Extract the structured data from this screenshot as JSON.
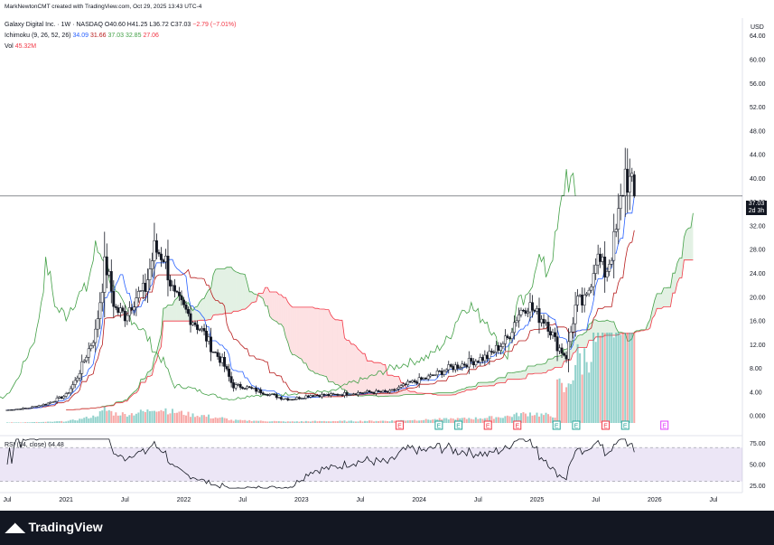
{
  "header": {
    "attribution": "MarkNewtonCMT created with TradingView.com, Oct 29, 2025 13:43 UTC-4",
    "symbol_line": "Galaxy Digital Inc. · 1W · NASDAQ",
    "ohlc": {
      "o": "O40.60",
      "h": "H41.25",
      "l": "L36.72",
      "c": "C37.03",
      "chg": "−2.79 (−7.01%)"
    },
    "ichimoku_label": "Ichimoku (9, 26, 52, 26)",
    "ichimoku_values": [
      "34.09",
      "31.66",
      "37.03",
      "32.85",
      "27.06"
    ],
    "vol_label": "Vol",
    "vol_value": "45.32M",
    "rsi_label": "RSI (14, close)",
    "rsi_value": "64.48"
  },
  "currency": "USD",
  "last_price": "37.03",
  "countdown": "2d 3h",
  "footer": {
    "logo_text": "TradingView"
  },
  "colors": {
    "up": "#131722",
    "down": "#131722",
    "tenkan": "#2962ff",
    "kijun": "#b71c1c",
    "chikou": "#43a047",
    "spanA": "#43a047",
    "spanB": "#f23645",
    "cloud_bull": "rgba(67,160,71,0.15)",
    "cloud_bear": "rgba(242,54,69,0.15)",
    "vol_up": "#26a69a",
    "vol_down": "#ef5350",
    "rsi": "#131722",
    "rsi_band": "rgba(126,87,194,0.15)"
  },
  "chart_data": {
    "type": "candlestick",
    "title": "Galaxy Digital Inc. · 1W · NASDAQ",
    "price_axis": {
      "ticks": [
        "0.000",
        "4.00",
        "8.00",
        "12.00",
        "16.00",
        "20.00",
        "24.00",
        "28.00",
        "32.00",
        "36.00",
        "40.00",
        "44.00",
        "48.00",
        "52.00",
        "56.00",
        "60.00",
        "64.00"
      ],
      "ylim": [
        -1.5,
        67
      ]
    },
    "time_axis": {
      "labels": [
        "Jul",
        "2021",
        "Jul",
        "2022",
        "Jul",
        "2023",
        "Jul",
        "2024",
        "Jul",
        "2025",
        "Jul",
        "2026",
        "Jul"
      ],
      "label_dates": [
        "2020-07",
        "2021-01",
        "2021-07",
        "2022-01",
        "2022-07",
        "2023-01",
        "2023-07",
        "2024-01",
        "2024-07",
        "2025-01",
        "2025-07",
        "2026-01",
        "2026-07"
      ]
    },
    "close_keypoints": [
      [
        "2020-07",
        1.0
      ],
      [
        "2020-09",
        1.3
      ],
      [
        "2020-11",
        2.0
      ],
      [
        "2021-01",
        3.5
      ],
      [
        "2021-02",
        6.0
      ],
      [
        "2021-03",
        10.0
      ],
      [
        "2021-04",
        14.0
      ],
      [
        "2021-05",
        26.0
      ],
      [
        "2021-06",
        18.0
      ],
      [
        "2021-07",
        17.0
      ],
      [
        "2021-08",
        20.0
      ],
      [
        "2021-09",
        21.0
      ],
      [
        "2021-10",
        28.0
      ],
      [
        "2021-11",
        27.0
      ],
      [
        "2021-12",
        20.0
      ],
      [
        "2022-01",
        18.0
      ],
      [
        "2022-02",
        16.0
      ],
      [
        "2022-03",
        14.0
      ],
      [
        "2022-04",
        11.0
      ],
      [
        "2022-05",
        9.0
      ],
      [
        "2022-06",
        5.0
      ],
      [
        "2022-07",
        5.0
      ],
      [
        "2022-08",
        4.5
      ],
      [
        "2022-09",
        4.0
      ],
      [
        "2022-10",
        3.5
      ],
      [
        "2022-11",
        3.0
      ],
      [
        "2022-12",
        2.8
      ],
      [
        "2023-02",
        3.5
      ],
      [
        "2023-04",
        3.5
      ],
      [
        "2023-06",
        3.8
      ],
      [
        "2023-08",
        4.0
      ],
      [
        "2023-10",
        4.0
      ],
      [
        "2023-12",
        5.5
      ],
      [
        "2024-02",
        6.5
      ],
      [
        "2024-04",
        8.0
      ],
      [
        "2024-06",
        9.0
      ],
      [
        "2024-08",
        10.0
      ],
      [
        "2024-10",
        13.0
      ],
      [
        "2024-11",
        17.0
      ],
      [
        "2024-12",
        19.0
      ],
      [
        "2025-01",
        17.0
      ],
      [
        "2025-02",
        16.0
      ],
      [
        "2025-03",
        12.0
      ],
      [
        "2025-04",
        10.0
      ],
      [
        "2025-05",
        19.0
      ],
      [
        "2025-06",
        19.0
      ],
      [
        "2025-07",
        27.0
      ],
      [
        "2025-08",
        24.0
      ],
      [
        "2025-09",
        30.0
      ],
      [
        "2025-10",
        41.0
      ],
      [
        "2025-10-29",
        37.03
      ]
    ],
    "last": {
      "open": 40.6,
      "high": 41.25,
      "low": 36.72,
      "close": 37.03,
      "change": -2.79,
      "change_pct": -7.01
    },
    "indicators": {
      "ichimoku": {
        "params": [
          9,
          26,
          52,
          26
        ],
        "conversion": 34.09,
        "base": 31.66,
        "lagging": 37.03,
        "lead1": 32.85,
        "lead2": 27.06
      },
      "volume": {
        "last": "45.32M"
      },
      "rsi": {
        "period": 14,
        "last": 64.48,
        "axis_ticks": [
          "25.00",
          "50.00",
          "75.00"
        ],
        "band": [
          30,
          70
        ]
      }
    },
    "earnings_markers": [
      {
        "date": "2023-11",
        "type": "down"
      },
      {
        "date": "2024-03",
        "type": "up"
      },
      {
        "date": "2024-05",
        "type": "up"
      },
      {
        "date": "2024-08",
        "type": "down"
      },
      {
        "date": "2024-11",
        "type": "down"
      },
      {
        "date": "2025-03",
        "type": "up"
      },
      {
        "date": "2025-05",
        "type": "up"
      },
      {
        "date": "2025-08",
        "type": "down"
      },
      {
        "date": "2025-10",
        "type": "up"
      },
      {
        "date": "2026-02",
        "type": "future"
      }
    ]
  }
}
